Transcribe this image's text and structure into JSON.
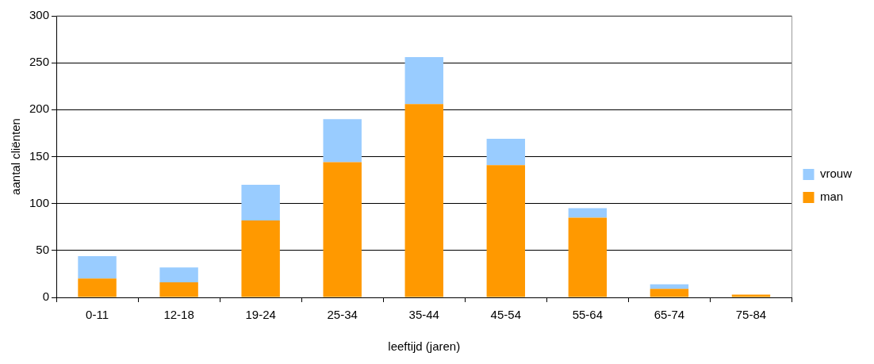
{
  "chart_data": {
    "type": "bar",
    "stacked": true,
    "xlabel": "leeftijd (jaren)",
    "ylabel": "aantal cliënten",
    "categories": [
      "0-11",
      "12-18",
      "19-24",
      "25-34",
      "35-44",
      "45-54",
      "55-64",
      "65-74",
      "75-84"
    ],
    "series": [
      {
        "name": "man",
        "color": "#ff9900",
        "values": [
          20,
          16,
          82,
          144,
          206,
          141,
          85,
          9,
          3
        ]
      },
      {
        "name": "vrouw",
        "color": "#99ccff",
        "values": [
          24,
          16,
          38,
          46,
          50,
          28,
          10,
          5,
          0
        ]
      }
    ],
    "ylim": [
      0,
      300
    ],
    "yticks": [
      0,
      50,
      100,
      150,
      200,
      250,
      300
    ],
    "grid": "y",
    "legend": "right"
  }
}
